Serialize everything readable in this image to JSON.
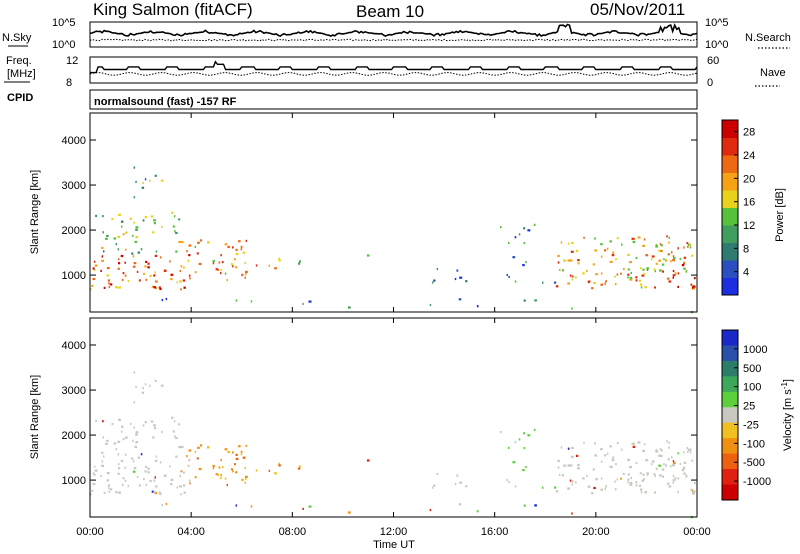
{
  "header": {
    "station": "King Salmon (fitACF)",
    "beam": "Beam 10",
    "date": "05/Nov/2011"
  },
  "panels": {
    "nsky_label": "N.Sky",
    "nsky_ticks": [
      "10^5",
      "10^0"
    ],
    "nsearch_label": "N.Search",
    "nsearch_ticks": [
      "10^5",
      "10^0"
    ],
    "freq_label_line1": "Freq.",
    "freq_label_line2": "[MHz]",
    "freq_ticks": [
      "12",
      "8"
    ],
    "nave_label": "Nave",
    "nave_ticks": [
      "60",
      "0"
    ],
    "cpid_label": "CPID",
    "cpid_value": "normalsound (fast) -157 RF"
  },
  "colors": {
    "power_scale": [
      "#1c2ee0",
      "#2c4fbf",
      "#2f7b6f",
      "#3f9d5e",
      "#55c23a",
      "#e8d21a",
      "#f5a215",
      "#ee6a12",
      "#e02a10",
      "#cc0000"
    ],
    "velocity_scale": [
      "#1a28c8",
      "#2a4fa8",
      "#2c7c6a",
      "#3ea85a",
      "#5bd03a",
      "#c8c8c0",
      "#f0c020",
      "#f09010",
      "#ec6010",
      "#e02010",
      "#cc0000"
    ],
    "gray_scatter": "#c8c8c0"
  },
  "chart_data": [
    {
      "type": "heatmap",
      "title": "",
      "xlabel": "Time UT",
      "ylabel": "Slant Range [km]",
      "xlim": [
        "00:00",
        "24:00"
      ],
      "x_ticks": [
        "00:00",
        "04:00",
        "08:00",
        "12:00",
        "16:00",
        "20:00",
        "00:00"
      ],
      "ylim": [
        180,
        4600
      ],
      "y_ticks": [
        1000,
        2000,
        3000,
        4000
      ],
      "colorbar_label": "Power [dB]",
      "colorbar_ticks": [
        4,
        8,
        12,
        16,
        20,
        24,
        28
      ],
      "colorbar_range": [
        0,
        30
      ]
    },
    {
      "type": "heatmap",
      "title": "",
      "xlabel": "Time UT",
      "ylabel": "Slant Range [km]",
      "xlim": [
        "00:00",
        "24:00"
      ],
      "x_ticks": [
        "00:00",
        "04:00",
        "08:00",
        "12:00",
        "16:00",
        "20:00",
        "00:00"
      ],
      "ylim": [
        180,
        4600
      ],
      "y_ticks": [
        1000,
        2000,
        3000,
        4000
      ],
      "colorbar_label": "Velocity [m s^-1]",
      "colorbar_ticks": [
        "1000",
        "500",
        "100",
        "25",
        "-25",
        "-100",
        "-500",
        "-1000"
      ],
      "ground_scatter_color": "gray"
    }
  ],
  "axis": {
    "time_label": "Time UT",
    "range_label": "Slant Range [km]",
    "power_label": "Power [dB]",
    "velocity_label": "Velocity [m s",
    "velocity_exp": "-1",
    "velocity_close": "]"
  }
}
